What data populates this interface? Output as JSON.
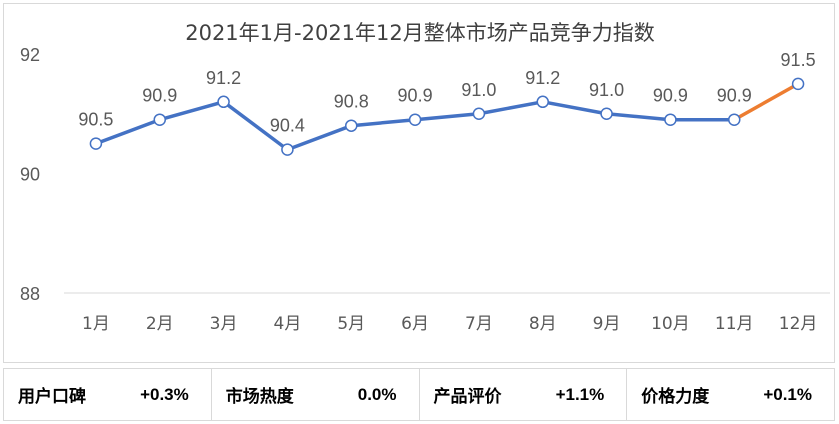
{
  "chart_data": {
    "type": "line",
    "title": "2021年1月-2021年12月整体市场产品竞争力指数",
    "categories": [
      "1月",
      "2月",
      "3月",
      "4月",
      "5月",
      "6月",
      "7月",
      "8月",
      "9月",
      "10月",
      "11月",
      "12月"
    ],
    "values": [
      90.5,
      90.9,
      91.2,
      90.4,
      90.8,
      90.9,
      91.0,
      91.2,
      91.0,
      90.9,
      90.9,
      91.5
    ],
    "data_labels": [
      "90.5",
      "90.9",
      "91.2",
      "90.4",
      "90.8",
      "90.9",
      "91.0",
      "91.2",
      "91.0",
      "90.9",
      "90.9",
      "91.5"
    ],
    "ylim": [
      88,
      92
    ],
    "yticks": [
      88,
      90,
      92
    ],
    "ytick_labels": [
      "88",
      "90",
      "92"
    ],
    "grid": false,
    "highlight_last_segment": true,
    "colors": {
      "line": "#4472c4",
      "highlight": "#ed7d31",
      "drop": "#c9d8ee",
      "marker_fill": "#ffffff",
      "axis": "#d9d9d9",
      "text": "#595959"
    }
  },
  "metrics": [
    {
      "label": "用户口碑",
      "value": "+0.3%"
    },
    {
      "label": "市场热度",
      "value": "0.0%"
    },
    {
      "label": "产品评价",
      "value": "+1.1%"
    },
    {
      "label": "价格力度",
      "value": "+0.1%"
    }
  ]
}
